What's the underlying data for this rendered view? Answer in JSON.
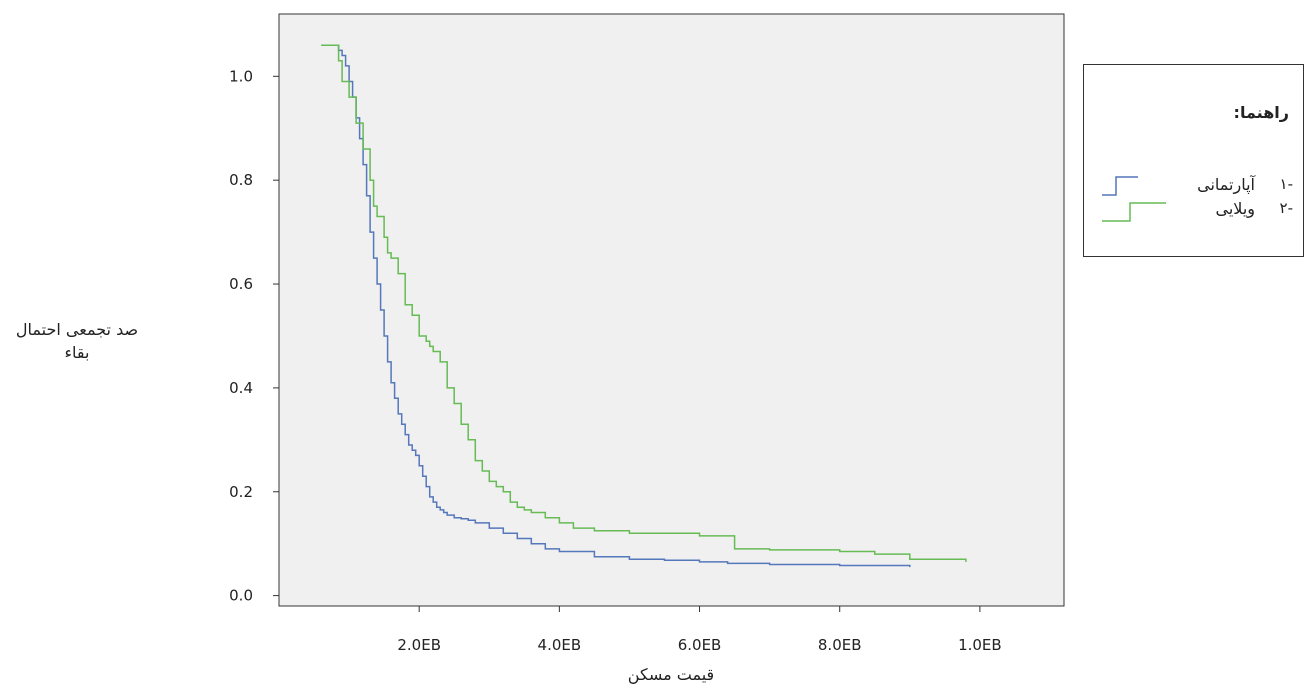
{
  "chart_data": {
    "type": "line",
    "title": "",
    "xlabel": "قیمت مسکن",
    "ylabel": "صد تجمعی احتمال بقاء",
    "x_tick_labels": [
      "2.0EB",
      "4.0EB",
      "6.0EB",
      "8.0EB",
      "1.0EB"
    ],
    "y_tick_labels": [
      "0.0",
      "0.2",
      "0.4",
      "0.6",
      "0.8",
      "1.0"
    ],
    "xlim": [
      0,
      11.2
    ],
    "ylim": [
      -0.02,
      1.12
    ],
    "grid": false,
    "legend_position": "right",
    "background_color": "#f0f0f0",
    "series": [
      {
        "name": "آپارتمانی",
        "color": "#5577bb",
        "step": true,
        "x": [
          0.7,
          0.8,
          0.85,
          0.9,
          0.95,
          1.0,
          1.05,
          1.1,
          1.15,
          1.2,
          1.25,
          1.3,
          1.35,
          1.4,
          1.45,
          1.5,
          1.55,
          1.6,
          1.65,
          1.7,
          1.75,
          1.8,
          1.85,
          1.9,
          1.95,
          2.0,
          2.05,
          2.1,
          2.15,
          2.2,
          2.25,
          2.3,
          2.35,
          2.4,
          2.5,
          2.6,
          2.7,
          2.8,
          3.0,
          3.2,
          3.4,
          3.6,
          3.8,
          4.0,
          4.5,
          5.0,
          5.5,
          6.0,
          6.4,
          7.0,
          8.0,
          9.0
        ],
        "y": [
          1.06,
          1.06,
          1.05,
          1.04,
          1.02,
          0.99,
          0.96,
          0.92,
          0.88,
          0.83,
          0.77,
          0.7,
          0.65,
          0.6,
          0.55,
          0.5,
          0.45,
          0.41,
          0.38,
          0.35,
          0.33,
          0.31,
          0.29,
          0.28,
          0.27,
          0.25,
          0.23,
          0.21,
          0.19,
          0.18,
          0.17,
          0.165,
          0.16,
          0.155,
          0.15,
          0.148,
          0.145,
          0.14,
          0.13,
          0.12,
          0.11,
          0.1,
          0.09,
          0.085,
          0.075,
          0.07,
          0.068,
          0.065,
          0.062,
          0.06,
          0.058,
          0.055
        ]
      },
      {
        "name": "ویلایی",
        "color": "#66bb55",
        "step": true,
        "x": [
          0.6,
          0.85,
          0.9,
          1.0,
          1.1,
          1.2,
          1.3,
          1.35,
          1.4,
          1.5,
          1.55,
          1.6,
          1.7,
          1.8,
          1.9,
          2.0,
          2.1,
          2.15,
          2.2,
          2.3,
          2.4,
          2.5,
          2.6,
          2.7,
          2.8,
          2.9,
          3.0,
          3.1,
          3.2,
          3.3,
          3.4,
          3.5,
          3.6,
          3.8,
          4.0,
          4.2,
          4.5,
          5.0,
          6.0,
          6.5,
          7.0,
          8.0,
          8.5,
          9.0,
          9.8
        ],
        "y": [
          1.06,
          1.03,
          0.99,
          0.96,
          0.91,
          0.86,
          0.8,
          0.75,
          0.73,
          0.69,
          0.66,
          0.65,
          0.62,
          0.56,
          0.54,
          0.5,
          0.49,
          0.48,
          0.47,
          0.45,
          0.4,
          0.37,
          0.33,
          0.3,
          0.26,
          0.24,
          0.22,
          0.21,
          0.2,
          0.18,
          0.17,
          0.165,
          0.16,
          0.15,
          0.14,
          0.13,
          0.125,
          0.12,
          0.115,
          0.09,
          0.088,
          0.085,
          0.08,
          0.07,
          0.065
        ]
      }
    ]
  },
  "legend": {
    "title": "راهنما:",
    "items": [
      {
        "number": "-۱",
        "label": "آپارتمانی",
        "color": "#5577bb"
      },
      {
        "number": "-۲",
        "label": "ویلایی",
        "color": "#66bb55"
      }
    ]
  }
}
